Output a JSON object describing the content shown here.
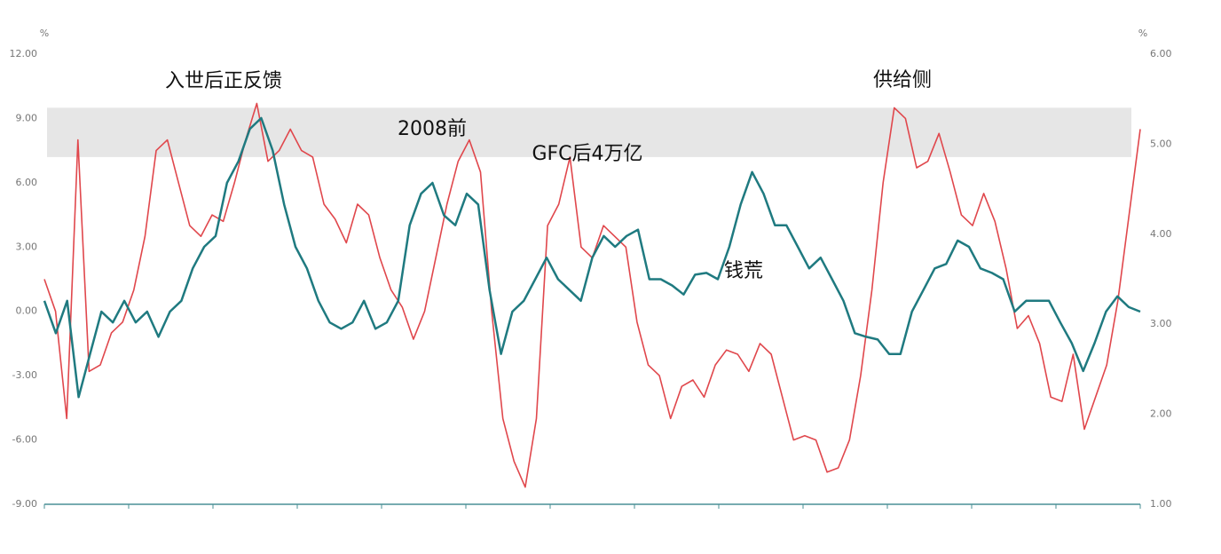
{
  "chart_data": {
    "type": "line",
    "y_unit": "%",
    "y2_unit": "%",
    "ylim": [
      -9,
      12
    ],
    "yticks": [
      {
        "value": -9,
        "label": "-9.00"
      },
      {
        "value": -6,
        "label": "-6.00"
      },
      {
        "value": -3,
        "label": "-3.00"
      },
      {
        "value": 0,
        "label": "0.00"
      },
      {
        "value": 3,
        "label": "3.00"
      },
      {
        "value": 6,
        "label": "6.00"
      },
      {
        "value": 9,
        "label": "9.00"
      },
      {
        "value": 12,
        "label": "12.00"
      }
    ],
    "y2lim": [
      1,
      6
    ],
    "y2ticks": [
      {
        "value": 1,
        "label": "1.00"
      },
      {
        "value": 2,
        "label": "2.00"
      },
      {
        "value": 3,
        "label": "3.00"
      },
      {
        "value": 4,
        "label": "4.00"
      },
      {
        "value": 5,
        "label": "5.00"
      },
      {
        "value": 6,
        "label": "6.00"
      }
    ],
    "band": [
      7.2,
      9.5
    ],
    "annotations": [
      "入世后正反馈",
      "2008前",
      "GFC后4万亿",
      "供给侧",
      "钱荒"
    ],
    "series": [
      {
        "color": "#e0474c",
        "axis": "y",
        "values": [
          1.5,
          0,
          -5,
          8,
          -2.8,
          -2.5,
          -1,
          -0.5,
          1,
          3.5,
          7.5,
          8,
          6,
          4,
          3.5,
          4.5,
          4.2,
          6,
          8,
          9.7,
          7,
          7.5,
          8.5,
          7.5,
          7.2,
          5,
          4.3,
          3.2,
          5,
          4.5,
          2.5,
          1,
          0.2,
          -1.3,
          0,
          2.5,
          5,
          7,
          8,
          6.5,
          0,
          -5,
          -7,
          -8.2,
          -5,
          4,
          5,
          7.2,
          3,
          2.5,
          4,
          3.5,
          3,
          -0.5,
          -2.5,
          -3,
          -5,
          -3.5,
          -3.2,
          -4,
          -2.5,
          -1.8,
          -2,
          -2.8,
          -1.5,
          -2,
          -4,
          -6,
          -5.8,
          -6,
          -7.5,
          -7.3,
          -6,
          -3,
          1,
          6,
          9.5,
          9,
          6.7,
          7,
          8.3,
          6.5,
          4.5,
          4,
          5.5,
          4.2,
          2,
          -0.8,
          -0.2,
          -1.5,
          -4,
          -4.2,
          -2,
          -5.5,
          -4,
          -2.5,
          0.5,
          4.5,
          8.5
        ]
      },
      {
        "color": "#1f7a80",
        "axis": "y2",
        "values": [
          3.26,
          2.9,
          3.26,
          2.19,
          2.67,
          3.14,
          3.02,
          3.26,
          3.02,
          3.14,
          2.86,
          3.14,
          3.26,
          3.62,
          3.86,
          3.98,
          4.57,
          4.81,
          5.17,
          5.29,
          4.93,
          4.33,
          3.86,
          3.62,
          3.26,
          3.02,
          2.95,
          3.02,
          3.26,
          2.95,
          3.02,
          3.26,
          4.1,
          4.45,
          4.57,
          4.21,
          4.1,
          4.45,
          4.33,
          3.38,
          2.67,
          3.14,
          3.26,
          3.5,
          3.74,
          3.5,
          3.38,
          3.26,
          3.74,
          3.98,
          3.86,
          3.98,
          4.05,
          3.5,
          3.5,
          3.43,
          3.33,
          3.55,
          3.57,
          3.5,
          3.86,
          4.33,
          4.69,
          4.45,
          4.1,
          4.1,
          3.86,
          3.62,
          3.74,
          3.5,
          3.26,
          2.9,
          2.86,
          2.83,
          2.67,
          2.67,
          3.14,
          3.38,
          3.62,
          3.67,
          3.93,
          3.86,
          3.62,
          3.57,
          3.5,
          3.14,
          3.26,
          3.26,
          3.26,
          3.02,
          2.79,
          2.48,
          2.79,
          3.14,
          3.31,
          3.19,
          3.14
        ]
      }
    ]
  }
}
